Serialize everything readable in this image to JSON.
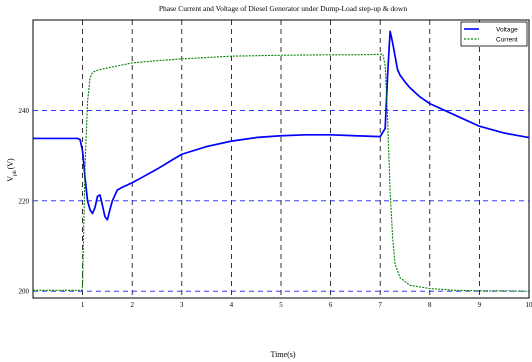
{
  "chart_data": {
    "type": "line",
    "title": "Phase Current and Voltage of Diesel Generator under Dump-Load step-up & down",
    "xlabel": "Time(s)",
    "ylabel": "V_ph(V)",
    "ylabel_main": "V",
    "ylabel_sub": "ph",
    "ylabel_unit": "(V)",
    "xlim": [
      0,
      10
    ],
    "ylim": [
      198.5,
      260
    ],
    "xticks": [
      1,
      2,
      3,
      4,
      5,
      6,
      7,
      8,
      9,
      10
    ],
    "yticks": [
      200,
      220,
      240
    ],
    "grid": true,
    "grid_style": "dashed",
    "legend_position": "top-right",
    "series": [
      {
        "name": "Voltage",
        "color": "#0000ff",
        "style": "solid",
        "x": [
          0,
          0.5,
          0.9,
          0.95,
          1.0,
          1.05,
          1.1,
          1.15,
          1.2,
          1.25,
          1.3,
          1.35,
          1.4,
          1.45,
          1.5,
          1.55,
          1.6,
          1.7,
          1.8,
          2.0,
          2.2,
          2.5,
          2.8,
          3.0,
          3.5,
          4.0,
          4.5,
          5.0,
          5.5,
          6.0,
          6.5,
          7.0,
          7.1,
          7.15,
          7.2,
          7.25,
          7.3,
          7.35,
          7.4,
          7.5,
          7.6,
          7.8,
          8.0,
          8.5,
          9.0,
          9.5,
          10.0
        ],
        "y": [
          233.8,
          233.8,
          233.8,
          233.5,
          231,
          225,
          220,
          218,
          217.2,
          218.5,
          221,
          221.3,
          219,
          216.5,
          215.8,
          218,
          220,
          222.4,
          223,
          224,
          225.2,
          227,
          229,
          230.3,
          232,
          233.2,
          234,
          234.4,
          234.6,
          234.6,
          234.4,
          234.2,
          236,
          248,
          257.5,
          255,
          252,
          249,
          247.8,
          246.3,
          245,
          243,
          241.5,
          239,
          236.5,
          235,
          234
        ]
      },
      {
        "name": "Current",
        "color": "#008000",
        "style": "dashed",
        "x": [
          0,
          0.5,
          0.99,
          1.0,
          1.05,
          1.1,
          1.15,
          1.2,
          1.3,
          1.5,
          2.0,
          2.5,
          3.0,
          4.0,
          5.0,
          6.0,
          6.5,
          7.0,
          7.05,
          7.1,
          7.15,
          7.2,
          7.25,
          7.3,
          7.4,
          7.6,
          8.0,
          8.5,
          9.0,
          9.5,
          10.0
        ],
        "y": [
          200.2,
          200.2,
          200.2,
          202,
          228,
          242,
          247.2,
          248.4,
          248.9,
          249.4,
          250.5,
          251,
          251.4,
          252,
          252.2,
          252.3,
          252.3,
          252.4,
          252.5,
          250,
          238,
          222,
          212,
          206,
          203,
          201.3,
          200.6,
          200.2,
          200.1,
          200.1,
          200
        ]
      }
    ]
  }
}
